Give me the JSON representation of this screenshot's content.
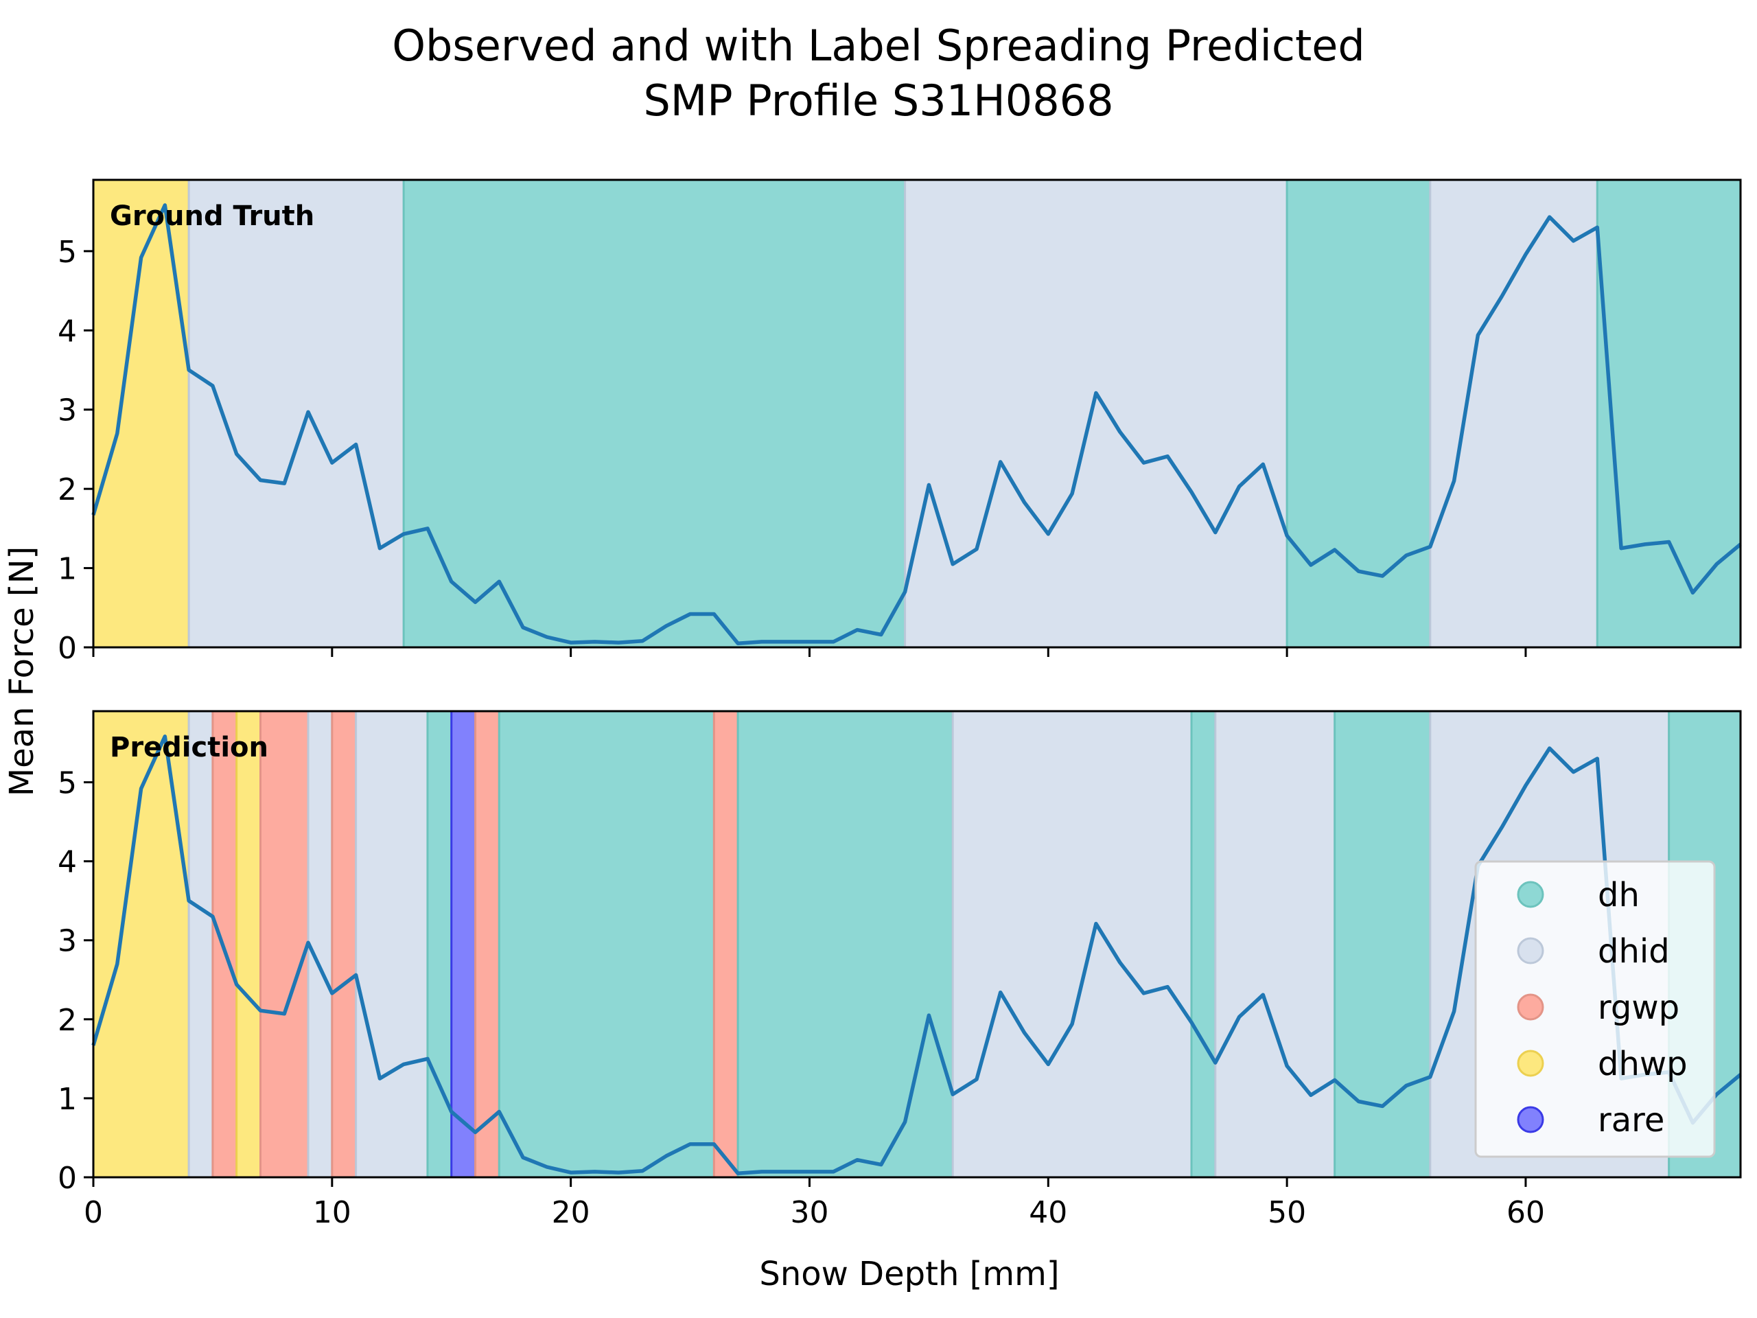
{
  "title_lines": [
    "Observed and with Label Spreading Predicted",
    "SMP Profile S31H0868"
  ],
  "chart_data": {
    "type": "line",
    "xlabel": "Snow Depth [mm]",
    "ylabel": "Mean Force [N]",
    "xlim": [
      0,
      69
    ],
    "ylim": [
      0,
      5.9
    ],
    "xticks": [
      0,
      10,
      20,
      30,
      40,
      50,
      60
    ],
    "yticks": [
      0,
      1,
      2,
      3,
      4,
      5
    ],
    "line_color": "#1f77b4",
    "series": [
      {
        "x": [
          0,
          1,
          2,
          3,
          4,
          5,
          6,
          7,
          8,
          9,
          10,
          11,
          12,
          13,
          14,
          15,
          16,
          17,
          18,
          19,
          20,
          21,
          22,
          23,
          24,
          25,
          26,
          27,
          28,
          29,
          30,
          31,
          32,
          33,
          34,
          35,
          36,
          37,
          38,
          39,
          40,
          41,
          42,
          43,
          44,
          45,
          46,
          47,
          48,
          49,
          50,
          51,
          52,
          53,
          54,
          55,
          56,
          57,
          58,
          59,
          60,
          61,
          62,
          63,
          64,
          65,
          66,
          67,
          68,
          69
        ],
        "values": [
          1.67,
          2.7,
          4.92,
          5.58,
          3.5,
          3.3,
          2.44,
          2.11,
          2.07,
          2.97,
          2.33,
          2.56,
          1.25,
          1.43,
          1.5,
          0.83,
          0.57,
          0.83,
          0.25,
          0.13,
          0.06,
          0.07,
          0.06,
          0.08,
          0.27,
          0.42,
          0.42,
          0.05,
          0.07,
          0.07,
          0.07,
          0.07,
          0.22,
          0.16,
          0.7,
          2.05,
          1.05,
          1.24,
          2.34,
          1.83,
          1.43,
          1.94,
          3.21,
          2.72,
          2.33,
          2.41,
          1.96,
          1.45,
          2.03,
          2.31,
          1.41,
          1.04,
          1.23,
          0.96,
          0.9,
          1.16,
          1.27,
          2.1,
          3.94,
          4.43,
          4.96,
          5.43,
          5.13,
          5.3,
          1.25,
          1.3,
          1.33,
          0.69,
          1.05,
          1.3
        ]
      }
    ],
    "classes": [
      {
        "name": "dh",
        "color": "#8ed8d4",
        "edge": "#6cc3bd"
      },
      {
        "name": "dhid",
        "color": "#d8e1ee",
        "edge": "#bcc8d9"
      },
      {
        "name": "rgwp",
        "color": "#fdab9f",
        "edge": "#e39487"
      },
      {
        "name": "dhwp",
        "color": "#fde87f",
        "edge": "#ecd050"
      },
      {
        "name": "rare",
        "color": "#8181fd",
        "edge": "#3a3ae6"
      }
    ],
    "panels": [
      {
        "label": "Ground Truth",
        "segments": [
          {
            "start": 0,
            "end": 4,
            "cls": "dhwp"
          },
          {
            "start": 4,
            "end": 13,
            "cls": "dhid"
          },
          {
            "start": 13,
            "end": 34,
            "cls": "dh"
          },
          {
            "start": 34,
            "end": 50,
            "cls": "dhid"
          },
          {
            "start": 50,
            "end": 56,
            "cls": "dh"
          },
          {
            "start": 56,
            "end": 63,
            "cls": "dhid"
          },
          {
            "start": 63,
            "end": 69,
            "cls": "dh"
          }
        ]
      },
      {
        "label": "Prediction",
        "segments": [
          {
            "start": 0,
            "end": 4,
            "cls": "dhwp"
          },
          {
            "start": 4,
            "end": 5,
            "cls": "dhid"
          },
          {
            "start": 5,
            "end": 6,
            "cls": "rgwp"
          },
          {
            "start": 6,
            "end": 7,
            "cls": "dhwp"
          },
          {
            "start": 7,
            "end": 9,
            "cls": "rgwp"
          },
          {
            "start": 9,
            "end": 10,
            "cls": "dhid"
          },
          {
            "start": 10,
            "end": 11,
            "cls": "rgwp"
          },
          {
            "start": 11,
            "end": 14,
            "cls": "dhid"
          },
          {
            "start": 14,
            "end": 15,
            "cls": "dh"
          },
          {
            "start": 15,
            "end": 16,
            "cls": "rare"
          },
          {
            "start": 16,
            "end": 17,
            "cls": "rgwp"
          },
          {
            "start": 17,
            "end": 26,
            "cls": "dh"
          },
          {
            "start": 26,
            "end": 27,
            "cls": "rgwp"
          },
          {
            "start": 27,
            "end": 36,
            "cls": "dh"
          },
          {
            "start": 36,
            "end": 46,
            "cls": "dhid"
          },
          {
            "start": 46,
            "end": 47,
            "cls": "dh"
          },
          {
            "start": 47,
            "end": 52,
            "cls": "dhid"
          },
          {
            "start": 52,
            "end": 56,
            "cls": "dh"
          },
          {
            "start": 56,
            "end": 66,
            "cls": "dhid"
          },
          {
            "start": 66,
            "end": 69,
            "cls": "dh"
          }
        ]
      }
    ],
    "legend": {
      "placement": "lower-right of bottom panel",
      "entries": [
        "dh",
        "dhid",
        "rgwp",
        "dhwp",
        "rare"
      ]
    }
  }
}
